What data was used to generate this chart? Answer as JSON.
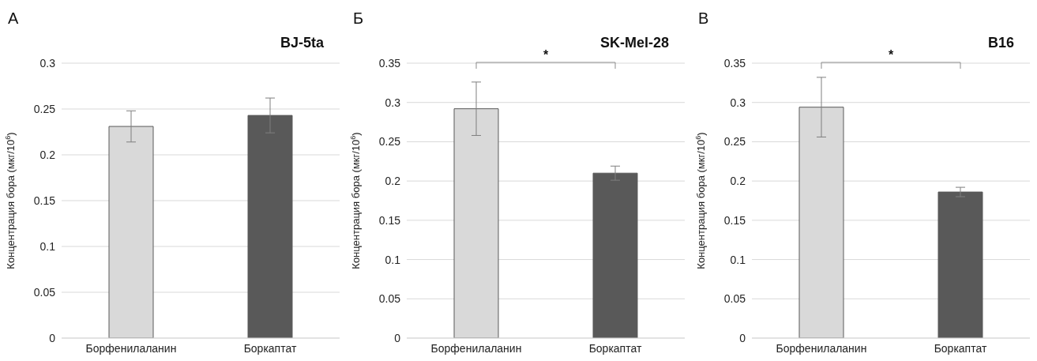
{
  "chart_data": [
    {
      "type": "bar",
      "title": "BJ-5ta",
      "ylabel": "Концентрация бора (мкг/10$^{6}$)",
      "annotations": [
        "А"
      ],
      "categories": [
        "Борфенилаланин",
        "Боркаптат"
      ],
      "values": [
        0.231,
        0.243
      ],
      "errors": [
        0.017,
        0.019
      ],
      "colors": [
        "#d9d9d9",
        "#595959"
      ],
      "ylim": [
        0,
        0.3
      ],
      "yticks": [
        0,
        0.05,
        0.1,
        0.15,
        0.2,
        0.25,
        0.3
      ],
      "grid": "y"
    },
    {
      "type": "bar",
      "title": "SK-Mel-28",
      "ylabel": "Концентрация бора (мкг/10$^{6}$)",
      "annotations": [
        "Б",
        "*"
      ],
      "categories": [
        "Борфенилаланин",
        "Боркаптат"
      ],
      "values": [
        0.292,
        0.21
      ],
      "errors": [
        0.034,
        0.009
      ],
      "colors": [
        "#d9d9d9",
        "#595959"
      ],
      "ylim": [
        0,
        0.35
      ],
      "yticks": [
        0,
        0.05,
        0.1,
        0.15,
        0.2,
        0.25,
        0.3,
        0.35
      ],
      "grid": "y"
    },
    {
      "type": "bar",
      "title": "B16",
      "ylabel": "Концентрация бора (мкг/10$^{6}$)",
      "annotations": [
        "В",
        "*"
      ],
      "categories": [
        "Борфенилаланин",
        "Боркаптат"
      ],
      "values": [
        0.294,
        0.186
      ],
      "errors": [
        0.038,
        0.006
      ],
      "colors": [
        "#d9d9d9",
        "#595959"
      ],
      "ylim": [
        0,
        0.35
      ],
      "yticks": [
        0,
        0.05,
        0.1,
        0.15,
        0.2,
        0.25,
        0.3,
        0.35
      ],
      "grid": "y"
    }
  ]
}
